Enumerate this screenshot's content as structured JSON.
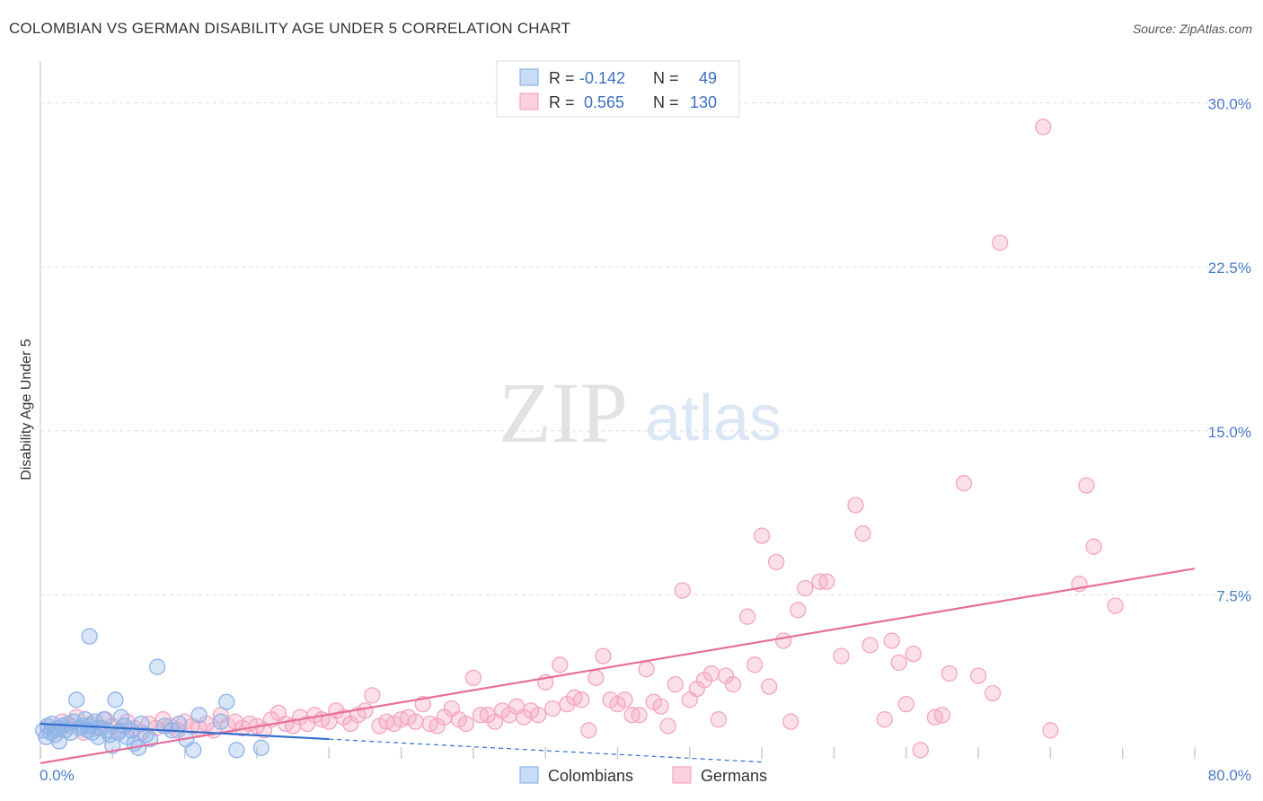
{
  "header": {
    "title": "COLOMBIAN VS GERMAN DISABILITY AGE UNDER 5 CORRELATION CHART",
    "source": "Source: ZipAtlas.com"
  },
  "watermark": {
    "zip": "ZIP",
    "atlas": "atlas"
  },
  "legend": {
    "rows": [
      {
        "r_label": "R =",
        "r_value": "-0.142",
        "n_label": "N =",
        "n_value": "49"
      },
      {
        "r_label": "R =",
        "r_value": "0.565",
        "n_label": "N =",
        "n_value": "130"
      }
    ]
  },
  "chart_data": {
    "type": "scatter",
    "title": "COLOMBIAN VS GERMAN DISABILITY AGE UNDER 5 CORRELATION CHART",
    "xlabel": "",
    "ylabel": "Disability Age Under 5",
    "xlim": [
      0,
      80
    ],
    "ylim": [
      0,
      31.5
    ],
    "x_tick_labels": [
      "0.0%",
      "80.0%"
    ],
    "y_ticks": [
      7.5,
      15.0,
      22.5,
      30.0
    ],
    "y_tick_labels": [
      "7.5%",
      "15.0%",
      "22.5%",
      "30.0%"
    ],
    "grid": true,
    "legend_position": "top-center",
    "series": [
      {
        "name": "Colombians",
        "color": "#8db4e8",
        "line_color": "#2f6fd0",
        "trend": {
          "x0": 0,
          "y0": 1.6,
          "x1": 20,
          "y1": 0.9,
          "dashed_to_x": 50,
          "dashed_to_y": -0.15
        },
        "points": [
          [
            0.2,
            1.3
          ],
          [
            0.4,
            1.0
          ],
          [
            0.5,
            1.5
          ],
          [
            0.7,
            1.2
          ],
          [
            0.8,
            1.6
          ],
          [
            1.0,
            1.1
          ],
          [
            1.2,
            1.4
          ],
          [
            1.3,
            0.8
          ],
          [
            1.5,
            1.5
          ],
          [
            1.7,
            1.3
          ],
          [
            1.9,
            1.6
          ],
          [
            2.1,
            1.2
          ],
          [
            2.3,
            1.7
          ],
          [
            2.5,
            2.7
          ],
          [
            2.7,
            1.4
          ],
          [
            2.9,
            1.5
          ],
          [
            3.1,
            1.8
          ],
          [
            3.3,
            1.3
          ],
          [
            3.4,
            1.5
          ],
          [
            3.6,
            1.2
          ],
          [
            3.8,
            1.7
          ],
          [
            4.0,
            1.0
          ],
          [
            4.2,
            1.4
          ],
          [
            4.4,
            1.8
          ],
          [
            4.6,
            1.3
          ],
          [
            4.8,
            1.1
          ],
          [
            5.0,
            0.6
          ],
          [
            5.2,
            2.7
          ],
          [
            5.4,
            1.2
          ],
          [
            5.6,
            1.9
          ],
          [
            5.8,
            1.5
          ],
          [
            6.0,
            1.0
          ],
          [
            6.3,
            1.3
          ],
          [
            6.5,
            0.7
          ],
          [
            6.8,
            0.5
          ],
          [
            7.0,
            1.6
          ],
          [
            7.3,
            1.1
          ],
          [
            7.6,
            0.9
          ],
          [
            8.1,
            4.2
          ],
          [
            8.6,
            1.5
          ],
          [
            9.1,
            1.3
          ],
          [
            9.6,
            1.6
          ],
          [
            10.1,
            0.9
          ],
          [
            10.6,
            0.4
          ],
          [
            11.0,
            2.0
          ],
          [
            12.5,
            1.7
          ],
          [
            12.9,
            2.6
          ],
          [
            13.6,
            0.4
          ],
          [
            15.3,
            0.5
          ],
          [
            3.4,
            5.6
          ]
        ]
      },
      {
        "name": "Germans",
        "color": "#f4a6bf",
        "line_color": "#e6709a",
        "trend": {
          "x0": 0,
          "y0": -0.2,
          "x1": 80,
          "y1": 8.7
        },
        "points": [
          [
            0.5,
            1.5
          ],
          [
            1.0,
            1.3
          ],
          [
            1.5,
            1.7
          ],
          [
            2.0,
            1.5
          ],
          [
            2.5,
            1.9
          ],
          [
            3.0,
            1.2
          ],
          [
            3.5,
            1.6
          ],
          [
            4.0,
            1.4
          ],
          [
            4.5,
            1.8
          ],
          [
            5.0,
            1.5
          ],
          [
            5.5,
            1.3
          ],
          [
            6.0,
            1.7
          ],
          [
            6.5,
            1.4
          ],
          [
            7.0,
            1.2
          ],
          [
            7.5,
            1.6
          ],
          [
            8.0,
            1.4
          ],
          [
            8.5,
            1.8
          ],
          [
            9.0,
            1.5
          ],
          [
            9.5,
            1.3
          ],
          [
            10.0,
            1.7
          ],
          [
            10.5,
            1.5
          ],
          [
            11.0,
            1.4
          ],
          [
            11.5,
            1.6
          ],
          [
            12.0,
            1.3
          ],
          [
            12.5,
            2.0
          ],
          [
            13.0,
            1.5
          ],
          [
            13.5,
            1.7
          ],
          [
            14.0,
            1.4
          ],
          [
            14.5,
            1.6
          ],
          [
            15.0,
            1.5
          ],
          [
            15.5,
            1.3
          ],
          [
            16.0,
            1.8
          ],
          [
            16.5,
            2.1
          ],
          [
            17.0,
            1.6
          ],
          [
            17.5,
            1.5
          ],
          [
            18.0,
            1.9
          ],
          [
            18.5,
            1.6
          ],
          [
            19.0,
            2.0
          ],
          [
            19.5,
            1.8
          ],
          [
            20.0,
            1.7
          ],
          [
            20.5,
            2.2
          ],
          [
            21.0,
            1.9
          ],
          [
            21.5,
            1.6
          ],
          [
            22.0,
            2.0
          ],
          [
            22.5,
            2.2
          ],
          [
            23.0,
            2.9
          ],
          [
            23.5,
            1.5
          ],
          [
            24.0,
            1.7
          ],
          [
            24.5,
            1.6
          ],
          [
            25.0,
            1.8
          ],
          [
            25.5,
            1.9
          ],
          [
            26.0,
            1.7
          ],
          [
            26.5,
            2.5
          ],
          [
            27.0,
            1.6
          ],
          [
            27.5,
            1.5
          ],
          [
            28.0,
            1.9
          ],
          [
            28.5,
            2.3
          ],
          [
            29.0,
            1.8
          ],
          [
            29.5,
            1.6
          ],
          [
            30.0,
            3.7
          ],
          [
            30.5,
            2.0
          ],
          [
            31.0,
            2.0
          ],
          [
            31.5,
            1.7
          ],
          [
            32.0,
            2.2
          ],
          [
            32.5,
            2.0
          ],
          [
            33.0,
            2.4
          ],
          [
            33.5,
            1.9
          ],
          [
            34.0,
            2.2
          ],
          [
            34.5,
            2.0
          ],
          [
            35.0,
            3.5
          ],
          [
            35.5,
            2.3
          ],
          [
            36.0,
            4.3
          ],
          [
            36.5,
            2.5
          ],
          [
            37.0,
            2.8
          ],
          [
            37.5,
            2.7
          ],
          [
            38.0,
            1.3
          ],
          [
            38.5,
            3.7
          ],
          [
            39.0,
            4.7
          ],
          [
            39.5,
            2.7
          ],
          [
            40.0,
            2.5
          ],
          [
            40.5,
            2.7
          ],
          [
            41.0,
            2.0
          ],
          [
            41.5,
            2.0
          ],
          [
            42.0,
            4.1
          ],
          [
            42.5,
            2.6
          ],
          [
            43.0,
            2.4
          ],
          [
            43.5,
            1.5
          ],
          [
            44.0,
            3.4
          ],
          [
            44.5,
            7.7
          ],
          [
            45.0,
            2.7
          ],
          [
            45.5,
            3.2
          ],
          [
            46.0,
            3.6
          ],
          [
            46.5,
            3.9
          ],
          [
            47.0,
            1.8
          ],
          [
            47.5,
            3.8
          ],
          [
            48.0,
            3.4
          ],
          [
            49.0,
            6.5
          ],
          [
            49.5,
            4.3
          ],
          [
            50.0,
            10.2
          ],
          [
            50.5,
            3.3
          ],
          [
            51.0,
            9.0
          ],
          [
            51.5,
            5.4
          ],
          [
            52.0,
            1.7
          ],
          [
            52.5,
            6.8
          ],
          [
            53.0,
            7.8
          ],
          [
            54.0,
            8.1
          ],
          [
            54.5,
            8.1
          ],
          [
            55.5,
            4.7
          ],
          [
            56.5,
            11.6
          ],
          [
            57.0,
            10.3
          ],
          [
            57.5,
            5.2
          ],
          [
            58.5,
            1.8
          ],
          [
            59.0,
            5.4
          ],
          [
            59.5,
            4.4
          ],
          [
            60.0,
            2.5
          ],
          [
            60.5,
            4.8
          ],
          [
            61.0,
            0.4
          ],
          [
            62.0,
            1.9
          ],
          [
            62.5,
            2.0
          ],
          [
            63.0,
            3.9
          ],
          [
            64.0,
            12.6
          ],
          [
            65.0,
            3.8
          ],
          [
            66.0,
            3.0
          ],
          [
            66.5,
            23.6
          ],
          [
            69.5,
            28.9
          ],
          [
            70.0,
            1.3
          ],
          [
            72.0,
            8.0
          ],
          [
            72.5,
            12.5
          ],
          [
            73.0,
            9.7
          ],
          [
            74.5,
            7.0
          ]
        ]
      }
    ]
  },
  "bottom_legend": {
    "items": [
      "Colombians",
      "Germans"
    ]
  }
}
